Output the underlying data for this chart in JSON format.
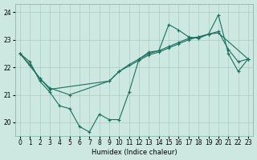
{
  "xlabel": "Humidex (Indice chaleur)",
  "background_color": "#cce8e0",
  "grid_color": "#aaccC4",
  "line_color": "#1a7060",
  "xlim": [
    -0.5,
    23.5
  ],
  "ylim": [
    19.5,
    24.3
  ],
  "yticks": [
    20,
    21,
    22,
    23,
    24
  ],
  "xticks": [
    0,
    1,
    2,
    3,
    4,
    5,
    6,
    7,
    8,
    9,
    10,
    11,
    12,
    13,
    14,
    15,
    16,
    17,
    18,
    19,
    20,
    21,
    22,
    23
  ],
  "series1_x": [
    0,
    1,
    2,
    3,
    4,
    5,
    6,
    7,
    8,
    9,
    10,
    11,
    12,
    13,
    14,
    15,
    16,
    17,
    18,
    19,
    20,
    21,
    22,
    23
  ],
  "series1_y": [
    22.5,
    22.2,
    21.5,
    21.1,
    20.6,
    20.5,
    19.85,
    19.65,
    20.3,
    20.1,
    20.1,
    21.1,
    22.3,
    22.55,
    22.6,
    23.55,
    23.35,
    23.1,
    23.05,
    23.2,
    23.9,
    22.5,
    21.85,
    22.3
  ],
  "series2_x": [
    0,
    2,
    3,
    5,
    9,
    10,
    12,
    13,
    14,
    15,
    16,
    17,
    18,
    19,
    20,
    23
  ],
  "series2_y": [
    22.5,
    21.6,
    21.25,
    21.0,
    21.5,
    21.85,
    22.25,
    22.45,
    22.55,
    22.7,
    22.85,
    23.0,
    23.1,
    23.2,
    23.25,
    22.3
  ],
  "series3_x": [
    0,
    1,
    2,
    3,
    9,
    10,
    11,
    12,
    13,
    14,
    15,
    16,
    17,
    18,
    19,
    20,
    21,
    22,
    23
  ],
  "series3_y": [
    22.5,
    22.1,
    21.6,
    21.2,
    21.5,
    21.85,
    22.1,
    22.3,
    22.5,
    22.6,
    22.75,
    22.9,
    23.05,
    23.1,
    23.2,
    23.3,
    22.65,
    22.2,
    22.3
  ]
}
